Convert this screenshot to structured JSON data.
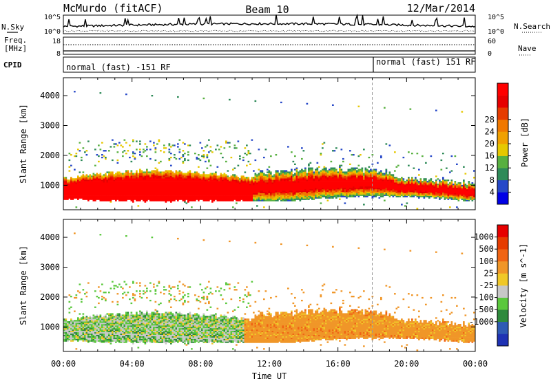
{
  "header": {
    "station": "McMurdo (fitACF)",
    "beam": "Beam 10",
    "date": "12/Mar/2014"
  },
  "summary_panels": {
    "nsky": {
      "label": "N.Sky",
      "left_ticks": [
        "10^5",
        "10^0"
      ],
      "right_label": "N.Search",
      "right_ticks": [
        "10^5",
        "10^0"
      ]
    },
    "freq": {
      "label_line1": "Freq.",
      "label_line2": "[MHz]",
      "left_ticks": [
        "18",
        "8"
      ],
      "right_label": "Nave",
      "right_ticks": [
        "60",
        "0"
      ]
    },
    "cpid": {
      "label": "CPID",
      "segments": [
        {
          "label": "normal (fast) -151 RF",
          "start_hour": 0
        },
        {
          "label": "normal (fast) 151 RF",
          "start_hour": 18
        }
      ]
    }
  },
  "chart_data": [
    {
      "type": "heatmap",
      "name": "power",
      "ylabel": "Slant Range [km]",
      "xlabel": "",
      "ylim": [
        180,
        4600
      ],
      "yticks": [
        1000,
        2000,
        3000,
        4000
      ],
      "xlim_hours": [
        0,
        24
      ],
      "xticks": [
        "00:00",
        "04:00",
        "08:00",
        "12:00",
        "16:00",
        "20:00",
        "00:00"
      ],
      "colorbar": {
        "label": "Power [dB]",
        "ticks": [
          "4",
          "8",
          "12",
          "16",
          "20",
          "24",
          "28"
        ],
        "colors": [
          "#0000e6",
          "#2648c8",
          "#2e8a58",
          "#58b040",
          "#e6c800",
          "#f0a000",
          "#f07800",
          "#e63c00",
          "#e60000",
          "#ff0000"
        ]
      },
      "reference_line_hour": 18
    },
    {
      "type": "heatmap",
      "name": "velocity",
      "ylabel": "Slant Range [km]",
      "xlabel": "Time UT",
      "ylim": [
        180,
        4600
      ],
      "yticks": [
        1000,
        2000,
        3000,
        4000
      ],
      "xlim_hours": [
        0,
        24
      ],
      "xticks": [
        "00:00",
        "04:00",
        "08:00",
        "12:00",
        "16:00",
        "20:00",
        "00:00"
      ],
      "colorbar": {
        "label": "Velocity [m s^-1]",
        "ticks": [
          "1000",
          "500",
          "100",
          "25",
          "-25",
          "-100",
          "-500",
          "-1000"
        ],
        "colors": [
          "#1e32b4",
          "#2e5ab4",
          "#2e8a3c",
          "#5ac83c",
          "#c8c8c8",
          "#f0c828",
          "#f09628",
          "#f06414",
          "#e63c00",
          "#e60000"
        ]
      },
      "reference_line_hour": 18
    }
  ]
}
